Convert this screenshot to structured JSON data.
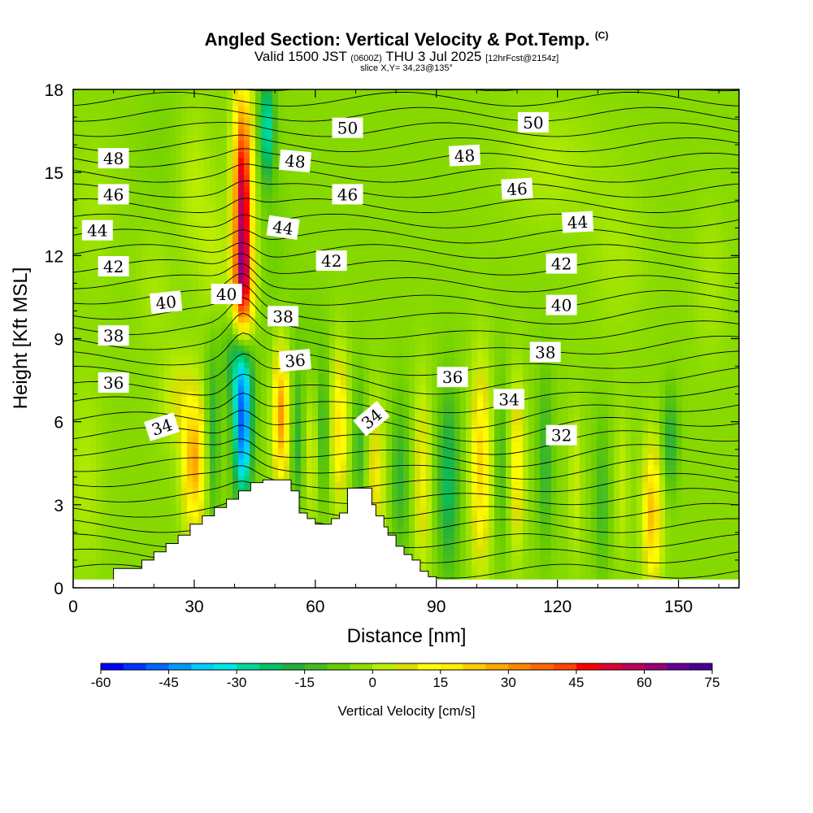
{
  "title": {
    "main": "Angled Section: Vertical Velocity & Pot.Temp.",
    "main_suffix": "(C)",
    "valid_prefix": "Valid 1500 JST",
    "valid_utc": "(0600Z)",
    "valid_date": "THU 3 Jul 2025",
    "forecast": "[12hrFcst@2154z]",
    "slice": "slice X,Y= 34,23@135°"
  },
  "chart_data": {
    "type": "heatmap",
    "title": "Angled Section: Vertical Velocity & Pot.Temp.",
    "xlabel": "Distance [nm]",
    "ylabel": "Height [Kft MSL]",
    "xlim": [
      0,
      165
    ],
    "ylim": [
      0,
      18
    ],
    "x_ticks": [
      0,
      30,
      60,
      90,
      120,
      150
    ],
    "y_ticks": [
      0,
      3,
      6,
      9,
      12,
      15,
      18
    ],
    "grid": false,
    "colorbar": {
      "title": "Vertical Velocity [cm/s]",
      "tick_labels": [
        -60,
        -45,
        -30,
        -15,
        0,
        15,
        30,
        45,
        60,
        75
      ],
      "min": -60,
      "max": 75,
      "colors": [
        "#0000ff",
        "#0033ff",
        "#0066ff",
        "#0099ff",
        "#00ccff",
        "#00e5e5",
        "#00d89a",
        "#00c466",
        "#20b040",
        "#44bb22",
        "#66cc00",
        "#8fdd00",
        "#bbee00",
        "#dddd00",
        "#ffff00",
        "#ffee00",
        "#ffcc00",
        "#ffaa00",
        "#ff8800",
        "#ff6600",
        "#ff4400",
        "#ff0000",
        "#dd0033",
        "#bb0055",
        "#990077",
        "#660099",
        "#440099"
      ]
    },
    "vertical_velocity_features": [
      {
        "x": 42,
        "y": 14.0,
        "w_peak": 62,
        "sx": 1.6,
        "sy": 2.7
      },
      {
        "x": 42,
        "y": 10.6,
        "w_peak": 38,
        "sx": 1.8,
        "sy": 1.4
      },
      {
        "x": 48,
        "y": 16.6,
        "w_peak": -28,
        "sx": 1.3,
        "sy": 1.3
      },
      {
        "x": 42,
        "y": 5.8,
        "w_peak": -45,
        "sx": 1.6,
        "sy": 1.9
      },
      {
        "x": 41,
        "y": 8.3,
        "w_peak": -20,
        "sx": 2.4,
        "sy": 1.2
      },
      {
        "x": 30,
        "y": 4.5,
        "w_peak": 33,
        "sx": 2.0,
        "sy": 1.6
      },
      {
        "x": 26,
        "y": 6.8,
        "w_peak": 10,
        "sx": 3.0,
        "sy": 1.2
      },
      {
        "x": 34.5,
        "y": 5.5,
        "w_peak": -14,
        "sx": 1.2,
        "sy": 2.2
      },
      {
        "x": 51.5,
        "y": 6.2,
        "w_peak": 35,
        "sx": 1.4,
        "sy": 1.7
      },
      {
        "x": 55.5,
        "y": 5.2,
        "w_peak": -13,
        "sx": 1.1,
        "sy": 1.8
      },
      {
        "x": 59,
        "y": 4.8,
        "w_peak": 9,
        "sx": 1.2,
        "sy": 1.6
      },
      {
        "x": 62,
        "y": 5.6,
        "w_peak": -11,
        "sx": 1.1,
        "sy": 1.8
      },
      {
        "x": 66,
        "y": 5.8,
        "w_peak": 24,
        "sx": 1.4,
        "sy": 1.8
      },
      {
        "x": 71,
        "y": 5.0,
        "w_peak": -11,
        "sx": 1.2,
        "sy": 1.8
      },
      {
        "x": 75,
        "y": 4.0,
        "w_peak": 15,
        "sx": 1.6,
        "sy": 1.8
      },
      {
        "x": 81,
        "y": 4.0,
        "w_peak": -12,
        "sx": 1.5,
        "sy": 2.0
      },
      {
        "x": 86.5,
        "y": 4.0,
        "w_peak": 15,
        "sx": 1.4,
        "sy": 2.3
      },
      {
        "x": 93,
        "y": 3.8,
        "w_peak": -19,
        "sx": 1.8,
        "sy": 2.3
      },
      {
        "x": 101,
        "y": 4.4,
        "w_peak": 26,
        "sx": 1.7,
        "sy": 2.4
      },
      {
        "x": 106,
        "y": 4.5,
        "w_peak": -9,
        "sx": 1.1,
        "sy": 2.2
      },
      {
        "x": 110,
        "y": 4.5,
        "w_peak": 19,
        "sx": 1.3,
        "sy": 2.0
      },
      {
        "x": 117,
        "y": 4.6,
        "w_peak": -12,
        "sx": 1.4,
        "sy": 2.2
      },
      {
        "x": 124.5,
        "y": 3.8,
        "w_peak": 8,
        "sx": 1.1,
        "sy": 1.8
      },
      {
        "x": 131,
        "y": 3.2,
        "w_peak": -10,
        "sx": 1.4,
        "sy": 2.0
      },
      {
        "x": 136,
        "y": 3.8,
        "w_peak": 7,
        "sx": 1.2,
        "sy": 1.8
      },
      {
        "x": 143.5,
        "y": 2.6,
        "w_peak": 30,
        "sx": 1.6,
        "sy": 1.7
      },
      {
        "x": 148,
        "y": 5.3,
        "w_peak": -14,
        "sx": 1.4,
        "sy": 1.3
      },
      {
        "x": 50,
        "y": 12.0,
        "w_peak": -3,
        "sx": 2.5,
        "sy": 2.5
      },
      {
        "x": 58,
        "y": 9.0,
        "w_peak": -3,
        "sx": 3.0,
        "sy": 1.5
      },
      {
        "x": 30,
        "y": 14.5,
        "w_peak": 6,
        "sx": 3.0,
        "sy": 2.0
      },
      {
        "x": 35,
        "y": 11.8,
        "w_peak": 6,
        "sx": 2.5,
        "sy": 1.6
      },
      {
        "x": 20,
        "y": 11.0,
        "w_peak": 4,
        "sx": 3.0,
        "sy": 1.5
      },
      {
        "x": 118,
        "y": 15.2,
        "w_peak": 5,
        "sx": 8.0,
        "sy": 1.5
      },
      {
        "x": 135,
        "y": 12.0,
        "w_peak": 4,
        "sx": 5.0,
        "sy": 2.0
      },
      {
        "x": 158,
        "y": 11.0,
        "w_peak": 4,
        "sx": 3.0,
        "sy": 2.0
      },
      {
        "x": 3,
        "y": 4.0,
        "w_peak": 5,
        "sx": 3.0,
        "sy": 2.5
      },
      {
        "x": 5,
        "y": 13.5,
        "w_peak": 3,
        "sx": 4.0,
        "sy": 2.0
      },
      {
        "x": 22,
        "y": 16.0,
        "w_peak": -2,
        "sx": 4.0,
        "sy": 2.0
      }
    ],
    "terrain": [
      [
        10,
        0.7
      ],
      [
        17,
        1.0
      ],
      [
        20,
        1.3
      ],
      [
        23,
        1.6
      ],
      [
        26,
        1.9
      ],
      [
        29,
        2.3
      ],
      [
        32,
        2.6
      ],
      [
        35,
        2.9
      ],
      [
        38,
        3.2
      ],
      [
        41,
        3.5
      ],
      [
        44,
        3.8
      ],
      [
        47,
        3.9
      ],
      [
        52,
        3.9
      ],
      [
        54,
        3.5
      ],
      [
        56,
        2.7
      ],
      [
        58,
        2.5
      ],
      [
        60,
        2.3
      ],
      [
        62,
        2.3
      ],
      [
        64,
        2.5
      ],
      [
        66,
        2.7
      ],
      [
        68,
        3.6
      ],
      [
        72,
        3.6
      ],
      [
        74,
        3.0
      ],
      [
        75,
        2.6
      ],
      [
        77,
        2.2
      ],
      [
        78,
        1.9
      ],
      [
        80,
        1.5
      ],
      [
        82,
        1.2
      ],
      [
        84,
        1.0
      ],
      [
        86,
        0.6
      ],
      [
        88,
        0.4
      ],
      [
        90,
        0.0
      ]
    ],
    "theta_contour_labels": [
      {
        "text": "50",
        "x": 68,
        "y": 16.6,
        "angle": 0
      },
      {
        "text": "50",
        "x": 114,
        "y": 16.8,
        "angle": 0
      },
      {
        "text": "48",
        "x": 10,
        "y": 15.5,
        "angle": 0
      },
      {
        "text": "48",
        "x": 55,
        "y": 15.4,
        "angle": 5
      },
      {
        "text": "48",
        "x": 97,
        "y": 15.6,
        "angle": -3
      },
      {
        "text": "46",
        "x": 10,
        "y": 14.2,
        "angle": 0
      },
      {
        "text": "46",
        "x": 68,
        "y": 14.2,
        "angle": 0
      },
      {
        "text": "46",
        "x": 110,
        "y": 14.4,
        "angle": -3
      },
      {
        "text": "44",
        "x": 6,
        "y": 12.9,
        "angle": 0
      },
      {
        "text": "44",
        "x": 52,
        "y": 13.0,
        "angle": 8
      },
      {
        "text": "44",
        "x": 125,
        "y": 13.2,
        "angle": -3
      },
      {
        "text": "42",
        "x": 10,
        "y": 11.6,
        "angle": 0
      },
      {
        "text": "42",
        "x": 64,
        "y": 11.8,
        "angle": 0
      },
      {
        "text": "42",
        "x": 121,
        "y": 11.7,
        "angle": 0
      },
      {
        "text": "40",
        "x": 23,
        "y": 10.3,
        "angle": -6
      },
      {
        "text": "40",
        "x": 38,
        "y": 10.6,
        "angle": 0
      },
      {
        "text": "40",
        "x": 121,
        "y": 10.2,
        "angle": 0
      },
      {
        "text": "38",
        "x": 10,
        "y": 9.1,
        "angle": 0
      },
      {
        "text": "38",
        "x": 52,
        "y": 9.8,
        "angle": 0
      },
      {
        "text": "38",
        "x": 117,
        "y": 8.5,
        "angle": 0
      },
      {
        "text": "36",
        "x": 10,
        "y": 7.4,
        "angle": 0
      },
      {
        "text": "36",
        "x": 55,
        "y": 8.2,
        "angle": -5
      },
      {
        "text": "36",
        "x": 94,
        "y": 7.6,
        "angle": 0
      },
      {
        "text": "34",
        "x": 22,
        "y": 5.8,
        "angle": -18
      },
      {
        "text": "34",
        "x": 74,
        "y": 6.1,
        "angle": -40
      },
      {
        "text": "34",
        "x": 108,
        "y": 6.8,
        "angle": 0
      },
      {
        "text": "32",
        "x": 121,
        "y": 5.5,
        "angle": 0
      }
    ]
  }
}
